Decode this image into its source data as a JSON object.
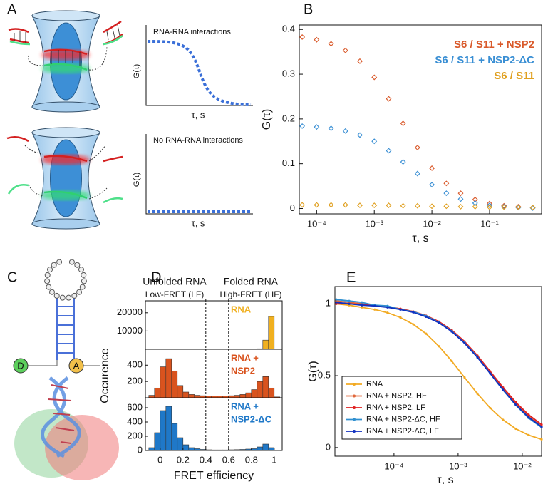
{
  "panel_labels": [
    "A",
    "B",
    "C",
    "D",
    "E"
  ],
  "diagram_a": {
    "top_plot": {
      "title": "RNA-RNA interactions",
      "ylabel": "G(τ)",
      "xlabel": "τ, s"
    },
    "bottom_plot": {
      "title": "No RNA-RNA interactions",
      "ylabel": "G(τ)",
      "xlabel": "τ, s"
    }
  },
  "diagram_c": {
    "donor": "D",
    "acceptor": "A"
  },
  "chart_data": [
    {
      "type": "scatter",
      "xlabel": "τ, s",
      "ylabel": "G(τ)",
      "log_x": true,
      "legend": "upper right",
      "xlim": [
        5e-05,
        0.8
      ],
      "ylim": [
        -0.012,
        0.41
      ],
      "xticks": [
        {
          "value": 0.0001,
          "label": "10⁻⁴"
        },
        {
          "value": 0.001,
          "label": "10⁻³"
        },
        {
          "value": 0.01,
          "label": "10⁻²"
        },
        {
          "value": 0.1,
          "label": "10⁻¹"
        }
      ],
      "yticks": [
        0,
        0.1,
        0.2,
        0.3,
        0.4
      ],
      "x": [
        5.62e-05,
        0.0001,
        0.000178,
        0.000316,
        0.000562,
        0.001,
        0.00178,
        0.00316,
        0.00562,
        0.01,
        0.0178,
        0.0316,
        0.0562,
        0.1,
        0.178,
        0.316,
        0.562
      ],
      "series": [
        {
          "name": "S6 / S11 + NSP2",
          "color": "#d9592a",
          "values": [
            0.383,
            0.377,
            0.368,
            0.353,
            0.329,
            0.293,
            0.245,
            0.19,
            0.136,
            0.09,
            0.056,
            0.034,
            0.02,
            0.011,
            0.006,
            0.004,
            0.002
          ]
        },
        {
          "name": "S6 / S11 + NSP2-ΔC",
          "color": "#3a8fd4",
          "values": [
            0.184,
            0.182,
            0.179,
            0.173,
            0.164,
            0.15,
            0.129,
            0.104,
            0.078,
            0.053,
            0.034,
            0.021,
            0.012,
            0.007,
            0.004,
            0.002,
            0.001
          ]
        },
        {
          "name": "S6 / S11",
          "color": "#e0a020",
          "values": [
            0.008,
            0.008,
            0.008,
            0.008,
            0.007,
            0.007,
            0.007,
            0.006,
            0.006,
            0.005,
            0.005,
            0.004,
            0.004,
            0.003,
            0.003,
            0.003,
            0.002
          ]
        }
      ]
    },
    {
      "type": "histogram",
      "xlabel": "FRET efficiency",
      "ylabel": "Occurence",
      "headers": [
        {
          "title": "Unfolded RNA",
          "subtitle": "Low-FRET (LF)"
        },
        {
          "title": "Folded RNA",
          "subtitle": "High-FRET (HF)"
        }
      ],
      "guides": [
        0.4,
        0.6
      ],
      "xlim": [
        -0.13,
        1.07
      ],
      "xticks": [
        0,
        0.2,
        0.4,
        0.6,
        0.8,
        1
      ],
      "bins": [
        -0.1,
        -0.05,
        0,
        0.05,
        0.1,
        0.15,
        0.2,
        0.25,
        0.3,
        0.35,
        0.4,
        0.45,
        0.5,
        0.55,
        0.6,
        0.65,
        0.7,
        0.75,
        0.8,
        0.85,
        0.9,
        0.95,
        1,
        1.05
      ],
      "series": [
        {
          "label": [
            "RNA"
          ],
          "color": "#f0b020",
          "ylim": [
            0,
            25000
          ],
          "yticks": [
            10000,
            20000
          ],
          "values": [
            0,
            0,
            0,
            0,
            0,
            0,
            0,
            0,
            0,
            0,
            0,
            0,
            0,
            0,
            0,
            0,
            0,
            20,
            60,
            300,
            5000,
            18000,
            200
          ]
        },
        {
          "label": [
            "RNA +",
            "NSP2"
          ],
          "color": "#d9531e",
          "ylim": [
            0,
            560
          ],
          "yticks": [
            200,
            400
          ],
          "values": [
            30,
            120,
            380,
            480,
            330,
            150,
            70,
            40,
            30,
            25,
            20,
            20,
            20,
            20,
            25,
            30,
            40,
            60,
            100,
            200,
            260,
            120,
            10
          ]
        },
        {
          "label": [
            "RNA +",
            "NSP2-ΔC"
          ],
          "color": "#1f78c8",
          "ylim": [
            0,
            700
          ],
          "yticks": [
            0,
            200,
            400,
            600
          ],
          "values": [
            40,
            250,
            560,
            620,
            380,
            180,
            80,
            40,
            25,
            15,
            10,
            8,
            8,
            8,
            10,
            12,
            15,
            20,
            25,
            50,
            90,
            40,
            5
          ]
        }
      ]
    },
    {
      "type": "line",
      "xlabel": "τ, s",
      "ylabel": "G(τ)",
      "log_x": true,
      "legend": "lower left",
      "xlim": [
        1.2e-05,
        0.02
      ],
      "ylim": [
        -0.06,
        1.12
      ],
      "xticks": [
        {
          "value": 0.0001,
          "label": "10⁻⁴"
        },
        {
          "value": 0.001,
          "label": "10⁻³"
        },
        {
          "value": 0.01,
          "label": "10⁻²"
        }
      ],
      "yticks": [
        0,
        0.5,
        1
      ],
      "x": [
        1.26e-05,
        2e-05,
        3.16e-05,
        5.01e-05,
        7.94e-05,
        0.000126,
        0.0002,
        0.000316,
        0.000501,
        0.000794,
        0.00126,
        0.002,
        0.00316,
        0.00501,
        0.00794,
        0.0126,
        0.02
      ],
      "series": [
        {
          "name": "RNA",
          "color": "#f2aa22",
          "values": [
            1.0,
            0.99,
            0.975,
            0.96,
            0.938,
            0.905,
            0.857,
            0.792,
            0.705,
            0.602,
            0.488,
            0.375,
            0.275,
            0.193,
            0.131,
            0.087,
            0.057
          ]
        },
        {
          "name": "RNA + NSP2, HF",
          "color": "#e0673a",
          "values": [
            1.02,
            1.01,
            1.0,
            0.99,
            0.98,
            0.965,
            0.946,
            0.917,
            0.875,
            0.815,
            0.735,
            0.636,
            0.525,
            0.411,
            0.306,
            0.217,
            0.149
          ]
        },
        {
          "name": "RNA + NSP2, LF",
          "color": "#e02020",
          "values": [
            1.0,
            1.0,
            0.995,
            0.99,
            0.978,
            0.965,
            0.946,
            0.917,
            0.876,
            0.817,
            0.738,
            0.64,
            0.53,
            0.418,
            0.315,
            0.228,
            0.16
          ]
        },
        {
          "name": "RNA + NSP2-ΔC, HF",
          "color": "#3090d0",
          "values": [
            1.03,
            1.02,
            1.01,
            0.99,
            0.985,
            0.96,
            0.945,
            0.915,
            0.87,
            0.81,
            0.73,
            0.63,
            0.515,
            0.4,
            0.295,
            0.205,
            0.14
          ]
        },
        {
          "name": "RNA + NSP2-ΔC, LF",
          "color": "#1030c0",
          "values": [
            1.01,
            1.0,
            0.99,
            0.985,
            0.975,
            0.96,
            0.94,
            0.91,
            0.868,
            0.807,
            0.726,
            0.627,
            0.515,
            0.402,
            0.298,
            0.21,
            0.145
          ]
        }
      ]
    }
  ]
}
